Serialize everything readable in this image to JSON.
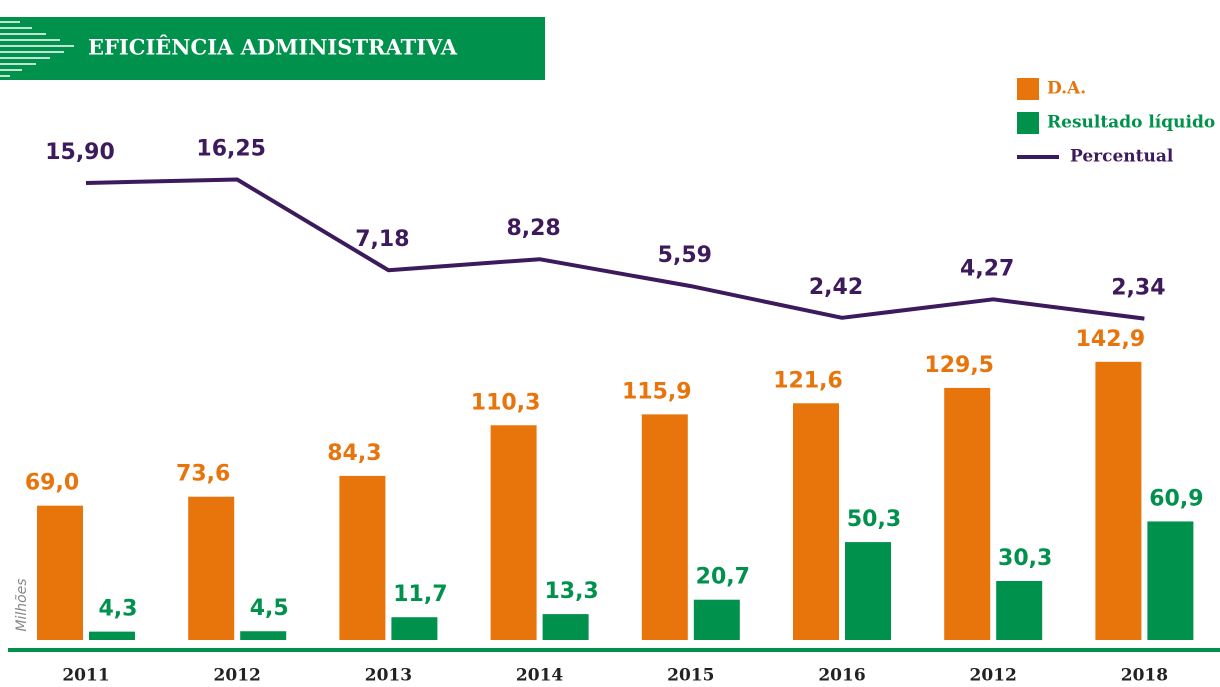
{
  "chart_data": {
    "type": "bar",
    "title": "EFICIÊNCIA ADMINISTRATIVA",
    "y_axis_label": "Milhões",
    "categories": [
      "2011",
      "2012",
      "2013",
      "2014",
      "2015",
      "2016",
      "2012",
      "2018"
    ],
    "series": [
      {
        "name": "D.A.",
        "color": "#e8740c",
        "values": [
          69.0,
          73.6,
          84.3,
          110.3,
          115.9,
          121.6,
          129.5,
          142.9
        ],
        "value_labels": [
          "69,0",
          "73,6",
          "84,3",
          "110,3",
          "115,9",
          "121,6",
          "129,5",
          "142,9"
        ]
      },
      {
        "name": "Resultado líquido",
        "color": "#00914c",
        "values": [
          4.3,
          4.5,
          11.7,
          13.3,
          20.7,
          50.3,
          30.3,
          60.9
        ],
        "value_labels": [
          "4,3",
          "4,5",
          "11,7",
          "13,3",
          "20,7",
          "50,3",
          "30,3",
          "60,9"
        ]
      },
      {
        "name": "Percentual",
        "type": "line",
        "axis": "y2",
        "color": "#3d1a5b",
        "values": [
          15.9,
          16.25,
          7.18,
          8.28,
          5.59,
          2.42,
          4.27,
          2.34
        ],
        "value_labels": [
          "15,90",
          "16,25",
          "7,18",
          "8,28",
          "5,59",
          "2,42",
          "4,27",
          "2,34"
        ]
      }
    ],
    "ylim": [
      0,
      150
    ],
    "y2lim": [
      0,
      20
    ],
    "legend": "top-right"
  }
}
